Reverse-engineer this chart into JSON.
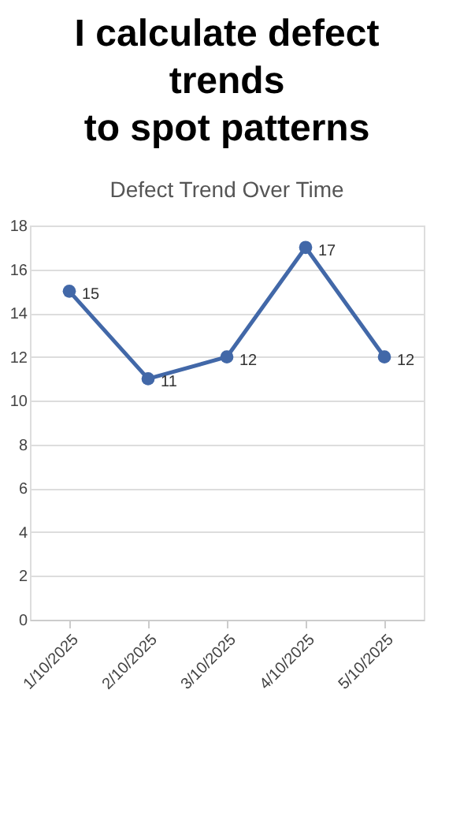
{
  "chart_data": {
    "type": "line",
    "title": [
      "I calculate defect",
      "trends",
      "to spot patterns"
    ],
    "subtitle": "Defect Trend Over Time",
    "categories": [
      "1/10/2025",
      "2/10/2025",
      "3/10/2025",
      "4/10/2025",
      "5/10/2025"
    ],
    "series": [
      {
        "color": "#4268a8",
        "values": [
          15,
          11,
          12,
          17,
          12
        ]
      }
    ],
    "ylim": [
      0,
      18
    ],
    "yticks": [
      0,
      2,
      4,
      6,
      8,
      10,
      12,
      14,
      16,
      18
    ],
    "grid": "y",
    "marker": "circle",
    "line_style": "solid",
    "data_labels": true
  }
}
